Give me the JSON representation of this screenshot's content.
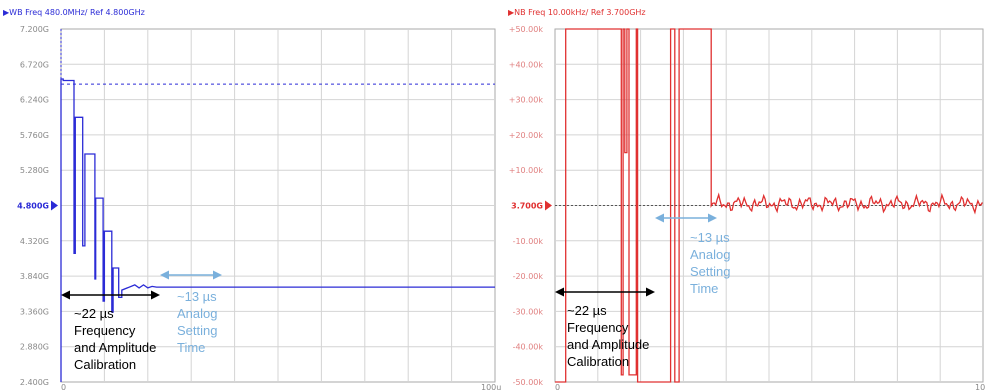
{
  "chart_data": [
    {
      "type": "line",
      "title": "▶WB Freq 480.0MHz/ Ref 4.800GHz",
      "color": "#2b2bd6",
      "x_start_label": "0",
      "x_end_label": "100u",
      "xlim": [
        0,
        100
      ],
      "ylim": [
        2.4,
        7.2
      ],
      "y_ticks": [
        "7.200G",
        "6.720G",
        "6.240G",
        "5.760G",
        "5.280G",
        "4.800G",
        "4.320G",
        "3.840G",
        "3.360G",
        "2.880G",
        "2.400G"
      ],
      "ref_label": "4.800G",
      "ref_value": 4.8,
      "dashed_level": 6.45,
      "series": [
        {
          "x": [
            0,
            0,
            0.5,
            0.5,
            3.0,
            3.0,
            3.3,
            3.3,
            5.0,
            5.0,
            5.5,
            5.5,
            7.8,
            7.8,
            8.0,
            8.0,
            9.7,
            9.7,
            10.0,
            10.0,
            11.7,
            11.7,
            12.0,
            12.0,
            13.3,
            13.3,
            14.0,
            14.0,
            17.0,
            18.0,
            19.0,
            20.0,
            21.0,
            22.0,
            100
          ],
          "y": [
            2.4,
            6.52,
            6.52,
            6.5,
            6.5,
            4.15,
            4.15,
            6.0,
            6.0,
            4.25,
            4.25,
            5.5,
            5.5,
            3.8,
            3.8,
            4.9,
            4.9,
            3.5,
            3.5,
            4.45,
            4.45,
            3.35,
            3.35,
            3.95,
            3.95,
            3.55,
            3.55,
            3.65,
            3.72,
            3.68,
            3.72,
            3.68,
            3.7,
            3.69,
            3.69
          ]
        }
      ]
    },
    {
      "type": "line",
      "title": "▶NB Freq 10.00kHz/ Ref 3.700GHz",
      "color": "#e03030",
      "x_start_label": "0",
      "x_end_label": "10",
      "xlim": [
        0,
        100
      ],
      "ylim": [
        -50,
        50
      ],
      "y_ticks": [
        "+50.00k",
        "+40.00k",
        "+30.00k",
        "+20.00k",
        "+10.00k",
        "3.700G",
        "-10.00k",
        "-20.00k",
        "-30.00k",
        "-40.00k",
        "-50.00k"
      ],
      "ref_label": "3.700G",
      "ref_value": 0,
      "series": [
        {
          "x": [
            0,
            2.5,
            2.5,
            15.5,
            15.5,
            15.9,
            15.9,
            16.3,
            16.3,
            16.8,
            16.8,
            17.3,
            17.3,
            19.0,
            19.0,
            19.3,
            19.3,
            27.0,
            27.0,
            28.0,
            28.0,
            29.0,
            29.0,
            36.5,
            36.5,
            100
          ],
          "y": [
            -50,
            -50,
            50,
            50,
            -48,
            -48,
            50,
            50,
            15,
            15,
            50,
            50,
            -48,
            -48,
            50,
            50,
            -50,
            -50,
            50,
            50,
            -50,
            -50,
            50,
            50,
            0.5,
            0.5
          ]
        }
      ],
      "noise_from_x": 36.5
    }
  ],
  "annotations": {
    "left": {
      "black_label_lines": [
        "~22 µs",
        "Frequency",
        "and Amplitude",
        "Calibration"
      ],
      "blue_label_lines": [
        "~13 µs",
        "Analog",
        "Setting",
        "Time"
      ]
    },
    "right": {
      "black_label_lines": [
        "~22 µs",
        "Frequency",
        "and Amplitude",
        "Calibration"
      ],
      "blue_label_lines": [
        "~13 µs",
        "Analog",
        "Setting",
        "Time"
      ]
    },
    "colors": {
      "black_arrow": "#000000",
      "blue_arrow": "#7ab0dc",
      "blue_text": "#7ab0dc"
    }
  }
}
